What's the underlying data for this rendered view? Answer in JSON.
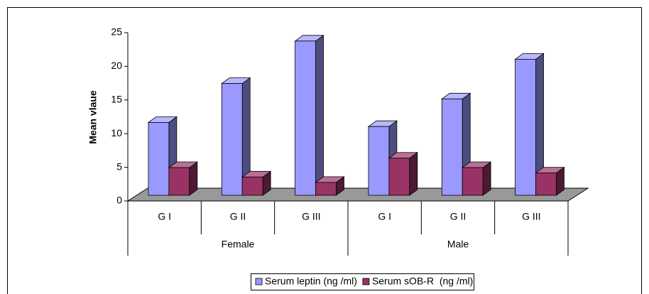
{
  "chart_data": {
    "type": "bar3d",
    "ylabel": "Mean vlaue",
    "categories": [
      "G I",
      "G II",
      "G III",
      "G I",
      "G II",
      "G III"
    ],
    "groups": [
      "Female",
      "Male"
    ],
    "series": [
      {
        "name": "Serum leptin (ng /ml)",
        "color": "#9999ff",
        "values": [
          12.5,
          18.3,
          24.6,
          11.9,
          16.0,
          21.9
        ]
      },
      {
        "name": "Serum sOB-R  (ng /ml)",
        "color": "#993366",
        "values": [
          5.8,
          4.4,
          3.6,
          7.2,
          5.8,
          5.0
        ]
      }
    ],
    "ylim": [
      0,
      25
    ],
    "yticks": [
      0,
      5,
      10,
      15,
      20,
      25
    ]
  }
}
